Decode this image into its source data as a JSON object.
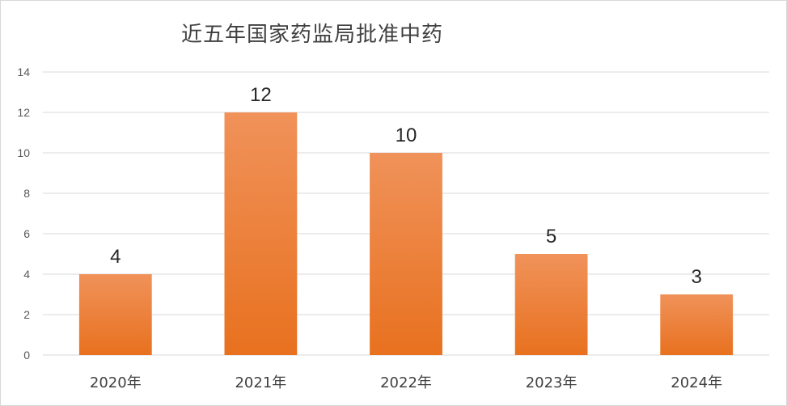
{
  "chart_data": {
    "type": "bar",
    "title": "近五年国家药监局批准中药",
    "categories": [
      "2020年",
      "2021年",
      "2022年",
      "2023年",
      "2024年"
    ],
    "values": [
      4,
      12,
      10,
      5,
      3
    ],
    "data_labels": [
      "4",
      "12",
      "10",
      "5",
      "3"
    ],
    "ylim": [
      0,
      14
    ],
    "yticks": [
      0,
      2,
      4,
      6,
      8,
      10,
      12,
      14
    ],
    "grid": true,
    "legend": "none",
    "colors": {
      "bar_top": "#f0925a",
      "bar_bottom": "#e8711f",
      "grid": "#d9d9d9",
      "text": "#404040"
    }
  }
}
